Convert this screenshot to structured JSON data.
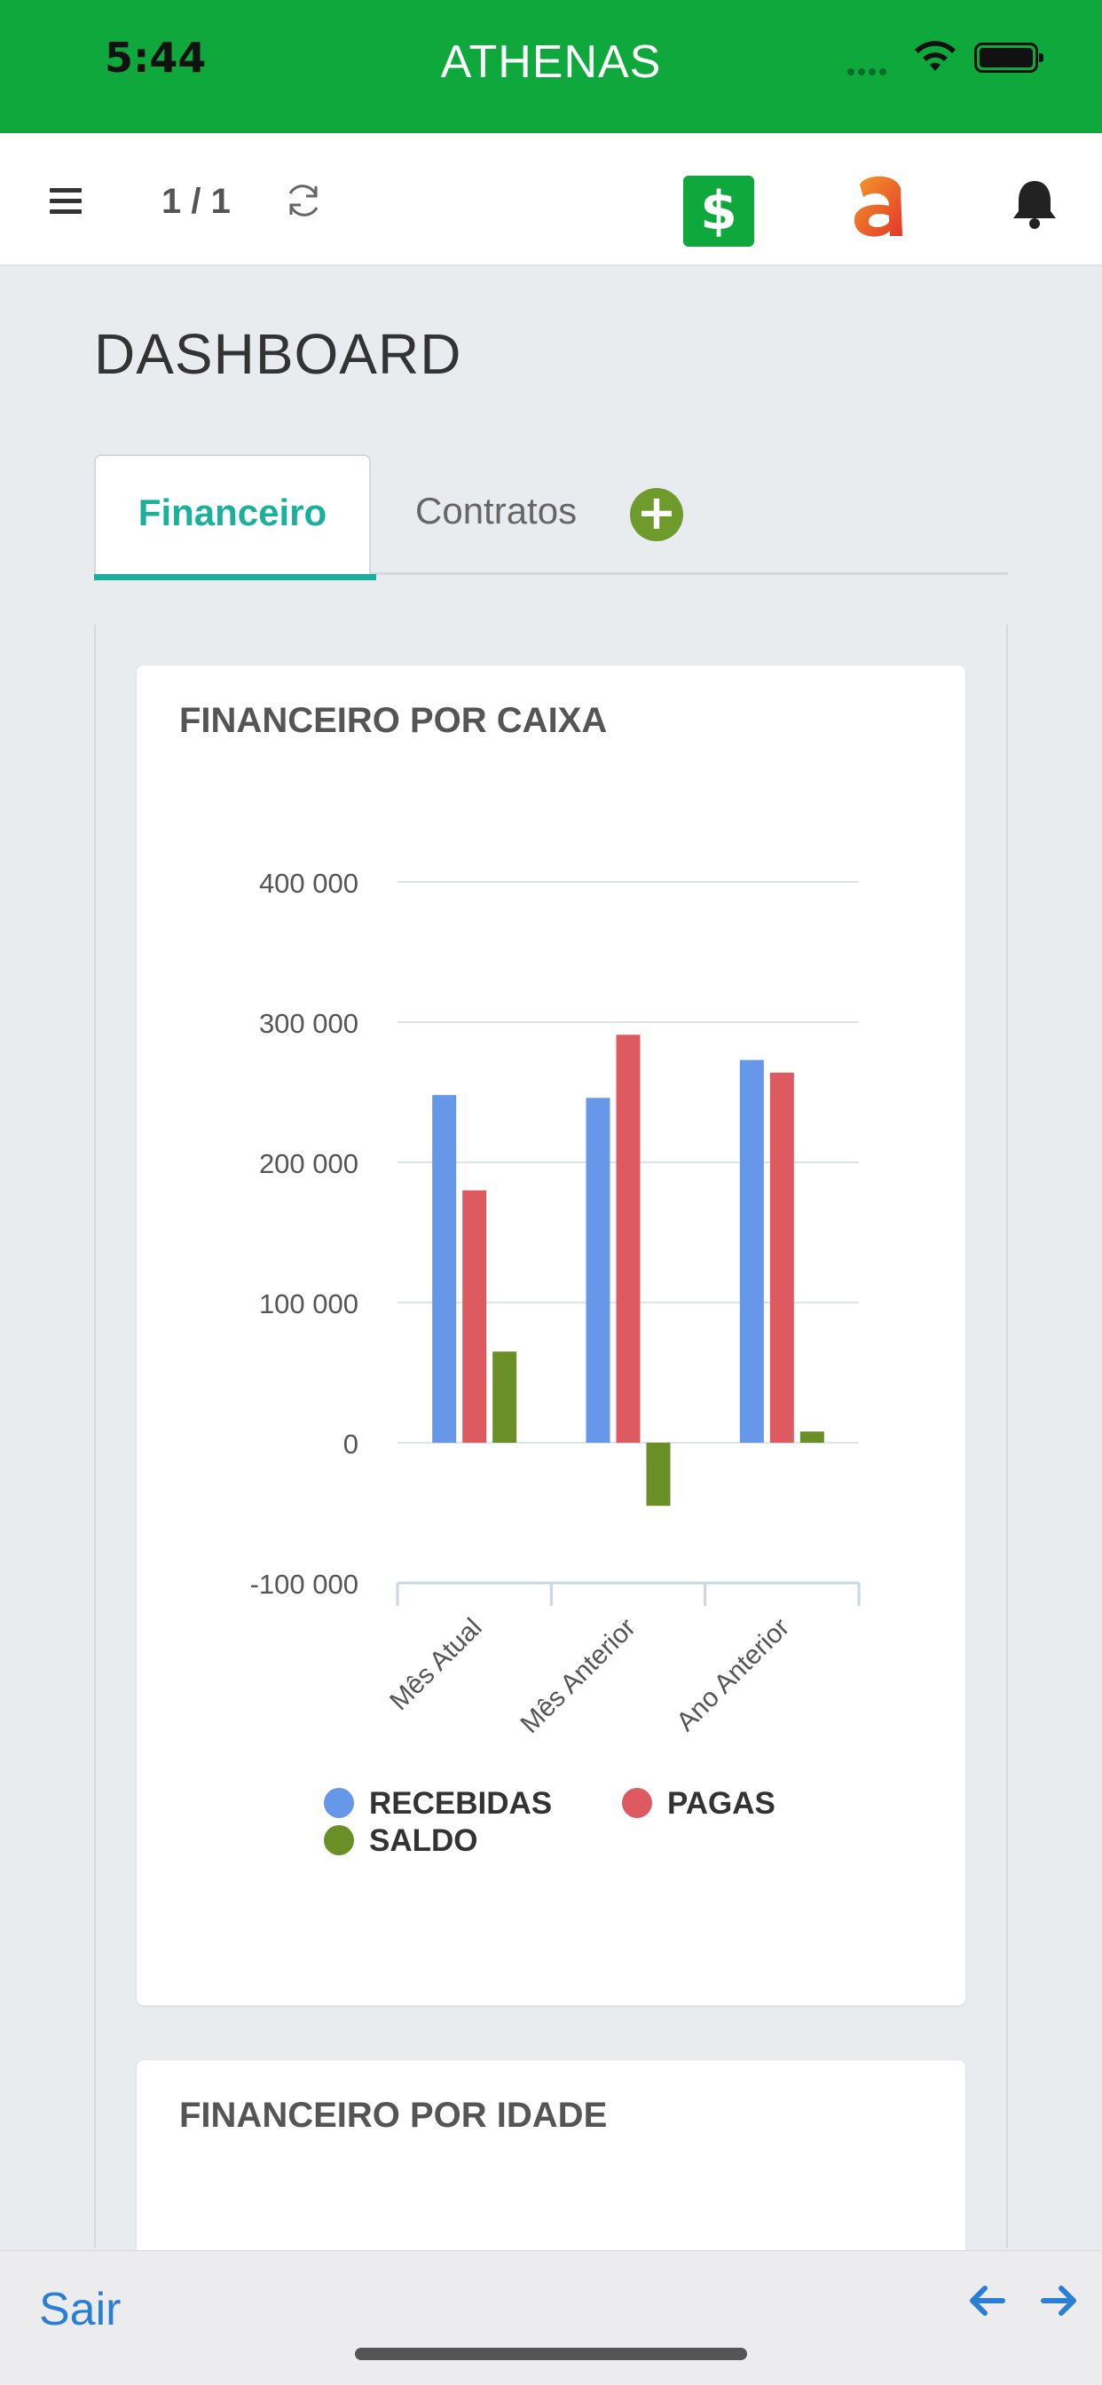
{
  "status_bar": {
    "time": "5:44",
    "title": "ATHENAS"
  },
  "toolbar": {
    "page_counter": "1 / 1",
    "dollar_symbol": "$",
    "icons": [
      "menu-icon",
      "refresh-icon",
      "dollar-icon",
      "app-logo",
      "bell-icon"
    ]
  },
  "page": {
    "title": "DASHBOARD"
  },
  "tabs": [
    {
      "label": "Financeiro",
      "active": true
    },
    {
      "label": "Contratos",
      "active": false
    }
  ],
  "add_tab_symbol": "+",
  "cards": [
    {
      "title": "FINANCEIRO POR CAIXA"
    },
    {
      "title": "FINANCEIRO POR IDADE"
    }
  ],
  "chart_data": {
    "type": "bar",
    "title": "FINANCEIRO POR CAIXA",
    "categories": [
      "Mês Atual",
      "Mês Anterior",
      "Ano Anterior"
    ],
    "series": [
      {
        "name": "RECEBIDAS",
        "color": "#6697e8",
        "values": [
          248000,
          246000,
          273000
        ]
      },
      {
        "name": "PAGAS",
        "color": "#dd5b60",
        "values": [
          180000,
          291000,
          264000
        ]
      },
      {
        "name": "SALDO",
        "color": "#6a8f26",
        "values": [
          65000,
          -45000,
          8000
        ]
      }
    ],
    "ylim": [
      -100000,
      400000
    ],
    "yticks": [
      400000,
      300000,
      200000,
      100000,
      0,
      -100000
    ],
    "ytick_labels": [
      "400 000",
      "300 000",
      "200 000",
      "100 000",
      "0",
      "-100 000"
    ],
    "grid": true,
    "legend_position": "bottom"
  },
  "bottom_bar": {
    "logout_label": "Sair"
  },
  "colors": {
    "brand_green": "#0fa83c",
    "accent_teal": "#1ab09b",
    "link_blue": "#2a7fd4"
  }
}
